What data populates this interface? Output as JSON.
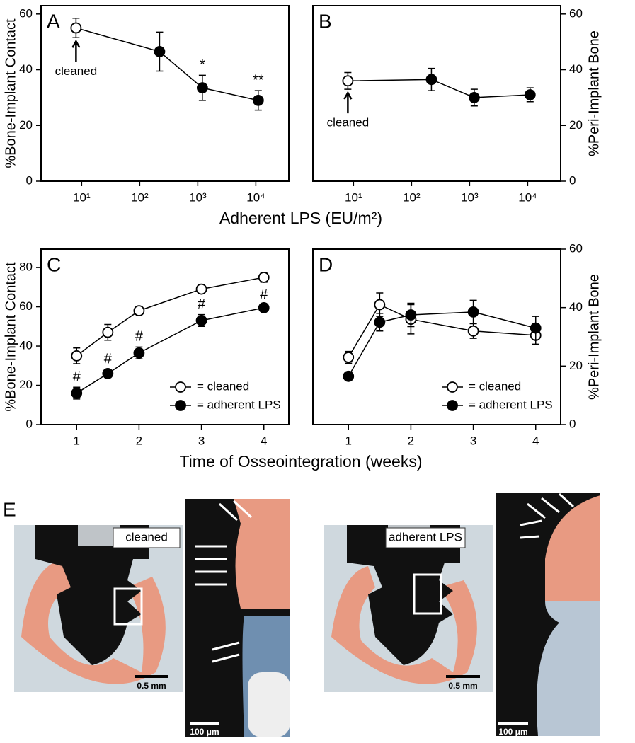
{
  "chart_data": [
    {
      "type": "line",
      "label": "A",
      "ylabel": "%Bone-Implant Contact",
      "xlabel": "Adherent LPS (EU/m²)",
      "xlog": true,
      "xlim": [
        2,
        37000
      ],
      "xticks": [
        {
          "value": 10,
          "label": "10¹"
        },
        {
          "value": 100,
          "label": "10²"
        },
        {
          "value": 1000,
          "label": "10³"
        },
        {
          "value": 10000,
          "label": "10⁴"
        }
      ],
      "ylim": [
        0,
        63
      ],
      "yticks": [
        0,
        20,
        40,
        60
      ],
      "yaxis": "left",
      "series": [
        {
          "color": "#000000",
          "marker_fills": [
            "#ffffff",
            "#000000",
            "#000000",
            "#000000"
          ],
          "x": [
            8,
            220,
            1200,
            11000
          ],
          "values": [
            55,
            46.5,
            33.5,
            29
          ],
          "errors": [
            3.5,
            7,
            4.5,
            3.5
          ],
          "above_labels": [
            null,
            null,
            "*",
            "**"
          ],
          "below_labels": [
            "cleaned",
            null,
            null,
            null
          ]
        }
      ]
    },
    {
      "type": "line",
      "label": "B",
      "ylabel": "%Peri-Implant Bone",
      "xlog": true,
      "xlim": [
        2,
        37000
      ],
      "xticks": [
        {
          "value": 10,
          "label": "10¹"
        },
        {
          "value": 100,
          "label": "10²"
        },
        {
          "value": 1000,
          "label": "10³"
        },
        {
          "value": 10000,
          "label": "10⁴"
        }
      ],
      "ylim": [
        0,
        63
      ],
      "yticks": [
        0,
        20,
        40,
        60
      ],
      "yaxis": "right",
      "series": [
        {
          "color": "#000000",
          "marker_fills": [
            "#ffffff",
            "#000000",
            "#000000",
            "#000000"
          ],
          "x": [
            8,
            220,
            1200,
            11000
          ],
          "values": [
            36,
            36.5,
            30,
            31
          ],
          "errors": [
            3,
            4,
            3,
            2.5
          ],
          "above_labels": [
            null,
            null,
            null,
            null
          ],
          "below_labels": [
            "cleaned",
            null,
            null,
            null
          ]
        }
      ]
    },
    {
      "type": "line",
      "label": "C",
      "ylabel": "%Bone-Implant Contact",
      "xlabel": "Time of Osseointegration (weeks)",
      "xlog": false,
      "xlim": [
        0.43,
        4.4
      ],
      "xticks": [
        1,
        2,
        3,
        4
      ],
      "ylim": [
        0,
        89.4
      ],
      "yticks": [
        0,
        20,
        40,
        60,
        80
      ],
      "yaxis": "left",
      "legend": "lower right",
      "series": [
        {
          "name": "= cleaned",
          "color": "#000000",
          "fill": "#ffffff",
          "x": [
            1,
            1.5,
            2,
            3,
            4
          ],
          "values": [
            35,
            47,
            58,
            69,
            75
          ],
          "errors": [
            4,
            4,
            1.5,
            1.5,
            2.5
          ]
        },
        {
          "name": "= adherent LPS",
          "color": "#000000",
          "fill": "#000000",
          "x": [
            1,
            1.5,
            2,
            3,
            4
          ],
          "values": [
            16,
            26,
            36.5,
            53,
            59.5
          ],
          "errors": [
            3,
            2,
            3,
            3,
            1.5
          ],
          "above_labels": [
            "#",
            "#",
            "#",
            "#",
            "#"
          ]
        }
      ]
    },
    {
      "type": "line",
      "label": "D",
      "ylabel": "%Peri-Implant Bone",
      "xlog": false,
      "xlim": [
        0.43,
        4.4
      ],
      "xticks": [
        1,
        2,
        3,
        4
      ],
      "ylim": [
        0,
        60
      ],
      "yticks": [
        0,
        20,
        40,
        60
      ],
      "yaxis": "right",
      "legend": "lower right",
      "series": [
        {
          "name": "= cleaned",
          "color": "#000000",
          "fill": "#ffffff",
          "x": [
            1,
            1.5,
            2,
            3,
            4
          ],
          "values": [
            23,
            41,
            36,
            32,
            30.5
          ],
          "errors": [
            2,
            4,
            5,
            2.5,
            3
          ]
        },
        {
          "name": "= adherent LPS",
          "color": "#000000",
          "fill": "#000000",
          "x": [
            1,
            1.5,
            2,
            3,
            4
          ],
          "values": [
            16.5,
            35,
            37.5,
            38.5,
            33
          ],
          "errors": [
            1.5,
            3,
            4,
            4,
            4
          ]
        }
      ]
    }
  ],
  "panel_e": {
    "letter": "E",
    "labels": [
      "cleaned",
      "adherent LPS"
    ],
    "scales": [
      "0.5 mm",
      "100 μm",
      "0.5 mm",
      "100 μm"
    ]
  }
}
